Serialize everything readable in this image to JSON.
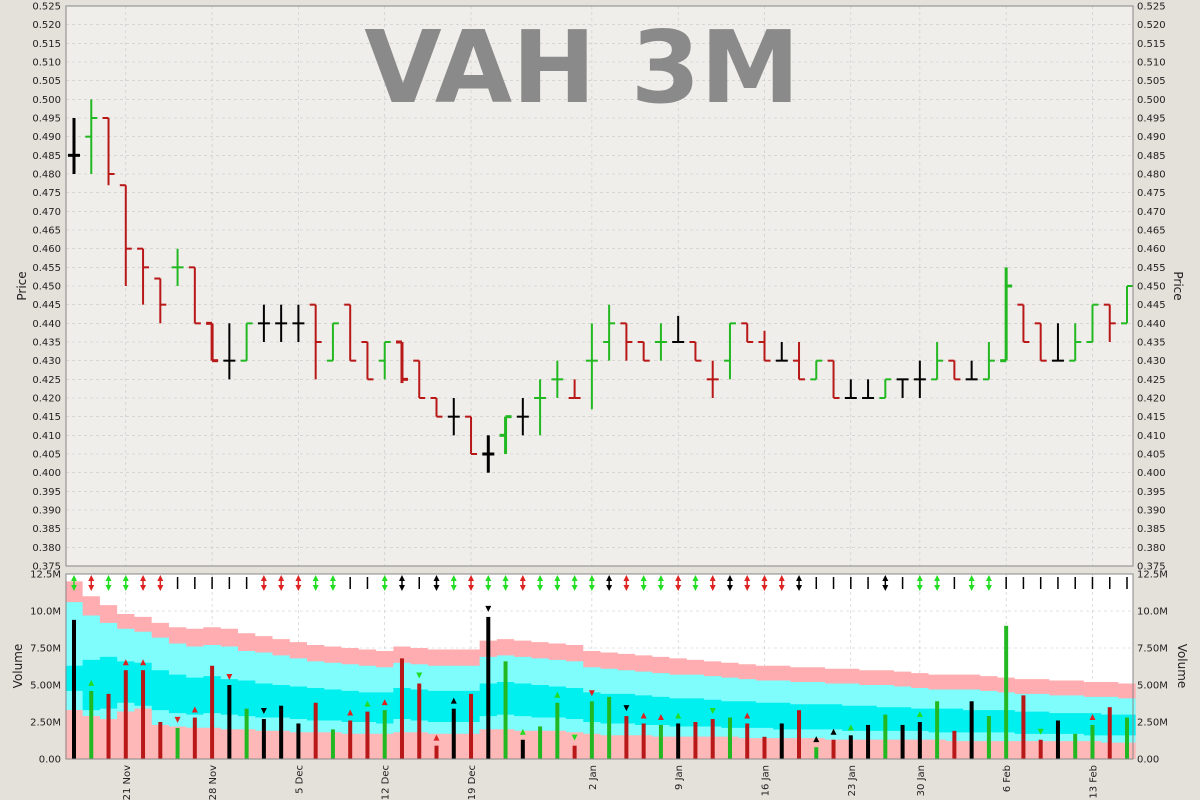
{
  "colors": {
    "up": "#22b822",
    "down": "#b81818",
    "flat": "#000000",
    "band_outer": "#ffadb0",
    "band_inner": "#7ffcfc",
    "band_core": "#00f0f0",
    "band_low": "#ffb8b8",
    "price_bg": "#f0eeea",
    "volume_bg": "#ffffff",
    "signal_up": "#22dd22",
    "signal_down": "#dd2222"
  },
  "chart_data": [
    {
      "type": "ohlc",
      "title": "VAH 3M",
      "ylabel": "Price",
      "ylim": [
        0.375,
        0.525
      ],
      "y_ticks": [
        "0.375",
        "0.380",
        "0.385",
        "0.390",
        "0.395",
        "0.400",
        "0.405",
        "0.410",
        "0.415",
        "0.420",
        "0.425",
        "0.430",
        "0.435",
        "0.440",
        "0.445",
        "0.450",
        "0.455",
        "0.460",
        "0.465",
        "0.470",
        "0.475",
        "0.480",
        "0.485",
        "0.490",
        "0.495",
        "0.500",
        "0.505",
        "0.510",
        "0.515",
        "0.520",
        "0.525"
      ],
      "x_labels": [
        "21 Nov",
        "28 Nov",
        "5 Dec",
        "12 Dec",
        "19 Dec",
        "2 Jan",
        "9 Jan",
        "16 Jan",
        "23 Jan",
        "30 Jan",
        "6 Feb",
        "13 Feb"
      ],
      "x_label_bar_index": [
        3,
        8,
        13,
        18,
        23,
        30,
        35,
        40,
        45,
        49,
        54,
        59
      ],
      "grid": true,
      "bars": [
        {
          "o": 0.485,
          "h": 0.495,
          "l": 0.48,
          "c": 0.485,
          "v": 9.4,
          "d": "flat"
        },
        {
          "o": 0.49,
          "h": 0.5,
          "l": 0.48,
          "c": 0.495,
          "v": 4.6,
          "d": "up"
        },
        {
          "o": 0.495,
          "h": 0.495,
          "l": 0.477,
          "c": 0.48,
          "v": 4.4,
          "d": "down"
        },
        {
          "o": 0.477,
          "h": 0.477,
          "l": 0.45,
          "c": 0.46,
          "v": 6.0,
          "d": "down"
        },
        {
          "o": 0.46,
          "h": 0.46,
          "l": 0.445,
          "c": 0.455,
          "v": 6.0,
          "d": "down"
        },
        {
          "o": 0.452,
          "h": 0.452,
          "l": 0.44,
          "c": 0.445,
          "v": 2.5,
          "d": "down"
        },
        {
          "o": 0.455,
          "h": 0.46,
          "l": 0.45,
          "c": 0.455,
          "v": 2.1,
          "d": "up"
        },
        {
          "o": 0.455,
          "h": 0.455,
          "l": 0.44,
          "c": 0.44,
          "v": 2.8,
          "d": "down"
        },
        {
          "o": 0.44,
          "h": 0.44,
          "l": 0.43,
          "c": 0.43,
          "v": 6.3,
          "d": "down"
        },
        {
          "o": 0.43,
          "h": 0.44,
          "l": 0.425,
          "c": 0.43,
          "v": 5.0,
          "d": "flat"
        },
        {
          "o": 0.43,
          "h": 0.44,
          "l": 0.43,
          "c": 0.44,
          "v": 3.4,
          "d": "up"
        },
        {
          "o": 0.44,
          "h": 0.445,
          "l": 0.435,
          "c": 0.44,
          "v": 2.7,
          "d": "flat"
        },
        {
          "o": 0.44,
          "h": 0.445,
          "l": 0.435,
          "c": 0.44,
          "v": 3.6,
          "d": "flat"
        },
        {
          "o": 0.44,
          "h": 0.445,
          "l": 0.435,
          "c": 0.44,
          "v": 2.4,
          "d": "flat"
        },
        {
          "o": 0.445,
          "h": 0.445,
          "l": 0.425,
          "c": 0.435,
          "v": 3.8,
          "d": "down"
        },
        {
          "o": 0.43,
          "h": 0.44,
          "l": 0.43,
          "c": 0.44,
          "v": 2.0,
          "d": "up"
        },
        {
          "o": 0.445,
          "h": 0.445,
          "l": 0.43,
          "c": 0.43,
          "v": 2.6,
          "d": "down"
        },
        {
          "o": 0.435,
          "h": 0.435,
          "l": 0.425,
          "c": 0.425,
          "v": 3.2,
          "d": "down"
        },
        {
          "o": 0.43,
          "h": 0.435,
          "l": 0.425,
          "c": 0.435,
          "v": 3.3,
          "d": "up"
        },
        {
          "o": 0.435,
          "h": 0.435,
          "l": 0.424,
          "c": 0.425,
          "v": 6.8,
          "d": "down"
        },
        {
          "o": 0.43,
          "h": 0.43,
          "l": 0.42,
          "c": 0.42,
          "v": 5.1,
          "d": "down"
        },
        {
          "o": 0.42,
          "h": 0.42,
          "l": 0.415,
          "c": 0.415,
          "v": 0.9,
          "d": "down"
        },
        {
          "o": 0.415,
          "h": 0.42,
          "l": 0.41,
          "c": 0.415,
          "v": 3.4,
          "d": "flat"
        },
        {
          "o": 0.415,
          "h": 0.415,
          "l": 0.405,
          "c": 0.405,
          "v": 4.4,
          "d": "down"
        },
        {
          "o": 0.405,
          "h": 0.41,
          "l": 0.4,
          "c": 0.405,
          "v": 9.6,
          "d": "flat"
        },
        {
          "o": 0.41,
          "h": 0.415,
          "l": 0.405,
          "c": 0.415,
          "v": 6.6,
          "d": "up"
        },
        {
          "o": 0.415,
          "h": 0.42,
          "l": 0.41,
          "c": 0.415,
          "v": 1.3,
          "d": "flat"
        },
        {
          "o": 0.42,
          "h": 0.425,
          "l": 0.41,
          "c": 0.42,
          "v": 2.2,
          "d": "up"
        },
        {
          "o": 0.425,
          "h": 0.43,
          "l": 0.42,
          "c": 0.425,
          "v": 3.8,
          "d": "up"
        },
        {
          "o": 0.42,
          "h": 0.425,
          "l": 0.42,
          "c": 0.42,
          "v": 0.9,
          "d": "down"
        },
        {
          "o": 0.43,
          "h": 0.44,
          "l": 0.417,
          "c": 0.43,
          "v": 3.9,
          "d": "up"
        },
        {
          "o": 0.435,
          "h": 0.445,
          "l": 0.43,
          "c": 0.44,
          "v": 4.2,
          "d": "up"
        },
        {
          "o": 0.44,
          "h": 0.44,
          "l": 0.43,
          "c": 0.435,
          "v": 2.9,
          "d": "down"
        },
        {
          "o": 0.435,
          "h": 0.435,
          "l": 0.43,
          "c": 0.43,
          "v": 2.4,
          "d": "down"
        },
        {
          "o": 0.435,
          "h": 0.44,
          "l": 0.43,
          "c": 0.435,
          "v": 2.3,
          "d": "up"
        },
        {
          "o": 0.435,
          "h": 0.442,
          "l": 0.435,
          "c": 0.435,
          "v": 2.4,
          "d": "flat"
        },
        {
          "o": 0.435,
          "h": 0.435,
          "l": 0.43,
          "c": 0.43,
          "v": 2.5,
          "d": "down"
        },
        {
          "o": 0.425,
          "h": 0.43,
          "l": 0.42,
          "c": 0.425,
          "v": 2.7,
          "d": "down"
        },
        {
          "o": 0.43,
          "h": 0.44,
          "l": 0.425,
          "c": 0.44,
          "v": 2.8,
          "d": "up"
        },
        {
          "o": 0.44,
          "h": 0.44,
          "l": 0.435,
          "c": 0.435,
          "v": 2.4,
          "d": "down"
        },
        {
          "o": 0.435,
          "h": 0.438,
          "l": 0.43,
          "c": 0.43,
          "v": 1.5,
          "d": "down"
        },
        {
          "o": 0.43,
          "h": 0.435,
          "l": 0.43,
          "c": 0.43,
          "v": 2.4,
          "d": "flat"
        },
        {
          "o": 0.43,
          "h": 0.435,
          "l": 0.425,
          "c": 0.425,
          "v": 3.3,
          "d": "down"
        },
        {
          "o": 0.425,
          "h": 0.43,
          "l": 0.425,
          "c": 0.43,
          "v": 0.8,
          "d": "up"
        },
        {
          "o": 0.43,
          "h": 0.43,
          "l": 0.42,
          "c": 0.42,
          "v": 1.3,
          "d": "down"
        },
        {
          "o": 0.42,
          "h": 0.425,
          "l": 0.42,
          "c": 0.42,
          "v": 1.6,
          "d": "flat"
        },
        {
          "o": 0.42,
          "h": 0.425,
          "l": 0.42,
          "c": 0.42,
          "v": 2.3,
          "d": "flat"
        },
        {
          "o": 0.42,
          "h": 0.425,
          "l": 0.42,
          "c": 0.425,
          "v": 3.0,
          "d": "up"
        },
        {
          "o": 0.425,
          "h": 0.425,
          "l": 0.42,
          "c": 0.425,
          "v": 2.3,
          "d": "flat"
        },
        {
          "o": 0.425,
          "h": 0.43,
          "l": 0.42,
          "c": 0.425,
          "v": 2.5,
          "d": "flat"
        },
        {
          "o": 0.425,
          "h": 0.435,
          "l": 0.425,
          "c": 0.43,
          "v": 3.9,
          "d": "up"
        },
        {
          "o": 0.43,
          "h": 0.43,
          "l": 0.425,
          "c": 0.425,
          "v": 1.9,
          "d": "down"
        },
        {
          "o": 0.425,
          "h": 0.43,
          "l": 0.425,
          "c": 0.425,
          "v": 3.9,
          "d": "flat"
        },
        {
          "o": 0.425,
          "h": 0.435,
          "l": 0.425,
          "c": 0.43,
          "v": 2.9,
          "d": "up"
        },
        {
          "o": 0.43,
          "h": 0.455,
          "l": 0.43,
          "c": 0.45,
          "v": 9.0,
          "d": "up"
        },
        {
          "o": 0.445,
          "h": 0.445,
          "l": 0.435,
          "c": 0.435,
          "v": 4.3,
          "d": "down"
        },
        {
          "o": 0.44,
          "h": 0.44,
          "l": 0.43,
          "c": 0.43,
          "v": 1.3,
          "d": "down"
        },
        {
          "o": 0.43,
          "h": 0.44,
          "l": 0.43,
          "c": 0.43,
          "v": 2.6,
          "d": "flat"
        },
        {
          "o": 0.43,
          "h": 0.44,
          "l": 0.43,
          "c": 0.435,
          "v": 1.7,
          "d": "up"
        },
        {
          "o": 0.435,
          "h": 0.445,
          "l": 0.435,
          "c": 0.445,
          "v": 2.3,
          "d": "up"
        },
        {
          "o": 0.445,
          "h": 0.445,
          "l": 0.435,
          "c": 0.44,
          "v": 3.5,
          "d": "down"
        },
        {
          "o": 0.44,
          "h": 0.45,
          "l": 0.44,
          "c": 0.45,
          "v": 2.8,
          "d": "up"
        }
      ]
    },
    {
      "type": "bar",
      "ylabel": "Volume",
      "ylim": [
        0,
        12.5
      ],
      "y_ticks": [
        "0.00",
        "2.50M",
        "5.00M",
        "7.50M",
        "10.0M",
        "12.5M"
      ],
      "band_outer_top": [
        12.0,
        11.0,
        10.4,
        9.8,
        9.6,
        9.2,
        8.9,
        8.8,
        8.9,
        8.8,
        8.5,
        8.3,
        8.1,
        7.9,
        7.7,
        7.6,
        7.5,
        7.4,
        7.3,
        7.6,
        7.5,
        7.4,
        7.4,
        7.4,
        8.0,
        8.1,
        8.0,
        7.9,
        7.8,
        7.7,
        7.3,
        7.2,
        7.1,
        7.0,
        6.9,
        6.8,
        6.7,
        6.6,
        6.5,
        6.4,
        6.3,
        6.3,
        6.2,
        6.2,
        6.1,
        6.1,
        6.0,
        6.0,
        5.9,
        5.8,
        5.7,
        5.7,
        5.7,
        5.6,
        5.5,
        5.4,
        5.4,
        5.3,
        5.3,
        5.2,
        5.2,
        5.1
      ],
      "band_inner_top": [
        10.6,
        9.7,
        9.2,
        8.8,
        8.6,
        8.2,
        7.8,
        7.6,
        7.7,
        7.6,
        7.3,
        7.2,
        7.0,
        6.8,
        6.6,
        6.5,
        6.4,
        6.3,
        6.2,
        6.5,
        6.4,
        6.3,
        6.3,
        6.3,
        6.9,
        7.0,
        6.9,
        6.8,
        6.7,
        6.6,
        6.2,
        6.1,
        6.0,
        5.9,
        5.8,
        5.7,
        5.7,
        5.6,
        5.5,
        5.4,
        5.3,
        5.3,
        5.2,
        5.2,
        5.1,
        5.1,
        5.0,
        5.0,
        4.9,
        4.8,
        4.7,
        4.7,
        4.7,
        4.6,
        4.5,
        4.4,
        4.4,
        4.3,
        4.3,
        4.2,
        4.2,
        4.1
      ],
      "band_core_top": [
        6.3,
        6.7,
        6.9,
        6.6,
        6.5,
        6.0,
        5.7,
        5.5,
        5.6,
        5.4,
        5.3,
        5.1,
        5.0,
        4.9,
        4.8,
        4.7,
        4.6,
        4.5,
        4.5,
        4.8,
        4.7,
        4.6,
        4.6,
        4.6,
        5.1,
        5.2,
        5.1,
        5.0,
        4.9,
        4.8,
        4.5,
        4.4,
        4.4,
        4.3,
        4.2,
        4.1,
        4.1,
        4.0,
        3.9,
        3.9,
        3.8,
        3.8,
        3.7,
        3.7,
        3.7,
        3.6,
        3.6,
        3.5,
        3.5,
        3.4,
        3.4,
        3.4,
        3.3,
        3.3,
        3.3,
        3.2,
        3.2,
        3.1,
        3.1,
        3.1,
        3.0,
        3.0
      ],
      "band_core_bottom": [
        4.6,
        3.3,
        3.4,
        3.8,
        3.6,
        3.3,
        3.1,
        3.0,
        3.1,
        3.0,
        2.9,
        2.8,
        2.8,
        2.7,
        2.6,
        2.6,
        2.5,
        2.5,
        2.4,
        2.7,
        2.6,
        2.5,
        2.5,
        2.5,
        2.9,
        3.0,
        2.9,
        2.8,
        2.8,
        2.7,
        2.5,
        2.4,
        2.4,
        2.3,
        2.3,
        2.2,
        2.2,
        2.2,
        2.1,
        2.1,
        2.1,
        2.0,
        2.0,
        2.0,
        2.0,
        1.9,
        1.9,
        1.9,
        1.9,
        1.9,
        1.8,
        1.8,
        1.8,
        1.8,
        1.8,
        1.7,
        1.7,
        1.7,
        1.7,
        1.6,
        1.6,
        1.6
      ],
      "band_low_top": [
        3.3,
        2.9,
        2.7,
        3.2,
        3.4,
        2.3,
        2.2,
        2.1,
        2.1,
        2.0,
        2.0,
        1.9,
        1.9,
        1.8,
        1.8,
        1.8,
        1.7,
        1.7,
        1.7,
        1.8,
        1.8,
        1.7,
        1.7,
        1.7,
        2.0,
        2.0,
        1.9,
        1.9,
        1.9,
        1.8,
        1.7,
        1.6,
        1.6,
        1.6,
        1.5,
        1.5,
        1.5,
        1.5,
        1.5,
        1.4,
        1.4,
        1.4,
        1.4,
        1.4,
        1.3,
        1.3,
        1.3,
        1.3,
        1.3,
        1.3,
        1.3,
        1.2,
        1.2,
        1.2,
        1.2,
        1.2,
        1.2,
        1.2,
        1.2,
        1.2,
        1.1,
        1.1
      ]
    }
  ],
  "signals": {
    "row": [
      "gg",
      "dd",
      "gg",
      "gg",
      "dd",
      "dd",
      "k",
      "k",
      "k",
      "k",
      "k",
      "dd",
      "dd",
      "dd",
      "gg",
      "gg",
      "k",
      "k",
      "gg",
      "kk",
      "k",
      "kk",
      "gg",
      "dd",
      "gg",
      "gg",
      "dd",
      "gg",
      "gg",
      "gg",
      "gg",
      "kk",
      "dd",
      "gg",
      "gg",
      "dd",
      "gg",
      "dd",
      "kk",
      "dd",
      "dd",
      "dd",
      "kk",
      "k",
      "k",
      "k",
      "k",
      "kk",
      "k",
      "gg",
      "gg",
      "k",
      "gg",
      "gg",
      "k",
      "k",
      "k",
      "k",
      "k",
      "k",
      "k",
      "k"
    ],
    "mid": [
      null,
      "g^",
      null,
      "d^",
      "d^",
      null,
      "dv",
      "d^",
      null,
      "dv",
      null,
      "kv",
      null,
      null,
      null,
      null,
      "d^",
      "g^",
      "d^",
      null,
      "gv",
      "d^",
      "k^",
      null,
      "kv",
      null,
      "g^",
      null,
      "g^",
      "gv",
      "dv",
      null,
      "kv",
      "d^",
      "d^",
      "g^",
      null,
      "gv",
      null,
      "d^",
      null,
      null,
      null,
      "k^",
      "k^",
      "g^",
      null,
      null,
      null,
      "g^",
      null,
      null,
      null,
      null,
      null,
      null,
      "gv",
      null,
      null,
      "d^",
      null,
      null
    ]
  }
}
